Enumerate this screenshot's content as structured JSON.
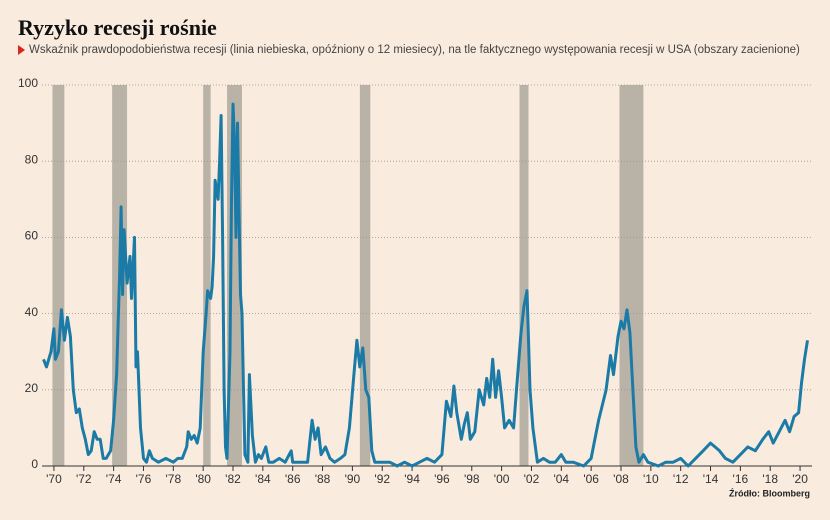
{
  "chart_data": {
    "type": "line",
    "title": "Ryzyko recesji rośnie",
    "subtitle": "Wskaźnik prawdopodobieństwa recesji (linia niebieska, opóźniony o 12 miesiecy), na tle faktycznego występowania recesji w USA (obszary zacienione)",
    "source": "Źródło: Bloomberg",
    "color": "#1c7ba6",
    "recession_color": "#b9b3a7",
    "grid": true,
    "recessions": [
      [
        1969.9,
        1970.7
      ],
      [
        1973.9,
        1974.9
      ],
      [
        1980.0,
        1980.5
      ],
      [
        1981.6,
        1982.6
      ],
      [
        1990.5,
        1991.2
      ],
      [
        2001.2,
        2001.8
      ],
      [
        2007.9,
        2009.5
      ]
    ],
    "x": [
      1969.3,
      1969.5,
      1969.8,
      1970.0,
      1970.1,
      1970.3,
      1970.5,
      1970.7,
      1970.9,
      1971.1,
      1971.3,
      1971.5,
      1971.7,
      1971.9,
      1972.1,
      1972.3,
      1972.5,
      1972.7,
      1972.9,
      1973.1,
      1973.3,
      1973.5,
      1973.8,
      1974.0,
      1974.2,
      1974.4,
      1974.5,
      1974.6,
      1974.7,
      1974.9,
      1975.1,
      1975.2,
      1975.4,
      1975.5,
      1975.6,
      1975.8,
      1976.0,
      1976.2,
      1976.4,
      1976.6,
      1977.0,
      1977.5,
      1978.0,
      1978.3,
      1978.6,
      1978.9,
      1979.0,
      1979.2,
      1979.4,
      1979.6,
      1979.8,
      1980.0,
      1980.2,
      1980.3,
      1980.5,
      1980.6,
      1980.7,
      1980.8,
      1981.0,
      1981.1,
      1981.2,
      1981.3,
      1981.4,
      1981.5,
      1981.6,
      1981.8,
      1981.9,
      1982.0,
      1982.1,
      1982.2,
      1982.3,
      1982.5,
      1982.6,
      1982.7,
      1982.8,
      1983.0,
      1983.1,
      1983.3,
      1983.5,
      1983.7,
      1983.9,
      1984.2,
      1984.4,
      1984.7,
      1985.1,
      1985.5,
      1985.9,
      1986.0,
      1986.4,
      1987.0,
      1987.3,
      1987.5,
      1987.7,
      1987.9,
      1988.2,
      1988.5,
      1988.8,
      1989.2,
      1989.5,
      1989.8,
      1990.1,
      1990.3,
      1990.5,
      1990.7,
      1990.9,
      1991.1,
      1991.3,
      1991.5,
      1992.0,
      1992.5,
      1993.0,
      1993.5,
      1994.0,
      1994.5,
      1995.0,
      1995.5,
      1996.0,
      1996.3,
      1996.6,
      1996.8,
      1997.0,
      1997.3,
      1997.5,
      1997.7,
      1997.9,
      1998.2,
      1998.5,
      1998.8,
      1999.0,
      1999.2,
      1999.4,
      1999.6,
      1999.8,
      2000.0,
      2000.2,
      2000.5,
      2000.8,
      2001.0,
      2001.3,
      2001.5,
      2001.7,
      2001.9,
      2002.1,
      2002.4,
      2002.8,
      2003.2,
      2003.6,
      2004.0,
      2004.3,
      2004.8,
      2005.5,
      2006.0,
      2006.5,
      2007.0,
      2007.3,
      2007.5,
      2007.8,
      2008.0,
      2008.2,
      2008.4,
      2008.6,
      2008.8,
      2009.0,
      2009.2,
      2009.5,
      2009.8,
      2010.5,
      2011.0,
      2011.5,
      2012.0,
      2012.5,
      2013.0,
      2013.5,
      2014.0,
      2014.3,
      2014.6,
      2015.0,
      2015.5,
      2016.0,
      2016.5,
      2017.0,
      2017.5,
      2017.9,
      2018.2,
      2018.6,
      2019.0,
      2019.3,
      2019.6,
      2019.9,
      2020.1,
      2020.3,
      2020.5
    ],
    "values": [
      28,
      26,
      30,
      36,
      28,
      30,
      41,
      33,
      39,
      34,
      20,
      14,
      15,
      10,
      7,
      3,
      4,
      9,
      7,
      7,
      2,
      2,
      4,
      12,
      24,
      50,
      68,
      45,
      62,
      48,
      55,
      44,
      60,
      26,
      30,
      10,
      2,
      1,
      4,
      2,
      1,
      2,
      1,
      2,
      2,
      5,
      9,
      7,
      8,
      6,
      10,
      30,
      40,
      46,
      44,
      47,
      55,
      75,
      70,
      80,
      92,
      60,
      20,
      5,
      2,
      30,
      70,
      95,
      85,
      60,
      90,
      45,
      40,
      20,
      3,
      1,
      24,
      8,
      1,
      3,
      2,
      5,
      1,
      1,
      2,
      1,
      4,
      1,
      1,
      1,
      12,
      7,
      10,
      3,
      5,
      2,
      1,
      2,
      3,
      10,
      24,
      33,
      26,
      31,
      20,
      18,
      4,
      1,
      1,
      1,
      0,
      1,
      0,
      1,
      2,
      1,
      3,
      17,
      13,
      21,
      14,
      7,
      11,
      14,
      7,
      9,
      20,
      16,
      23,
      18,
      28,
      18,
      25,
      18,
      10,
      12,
      10,
      20,
      35,
      42,
      46,
      20,
      10,
      1,
      2,
      1,
      1,
      3,
      1,
      1,
      0,
      2,
      12,
      20,
      29,
      24,
      34,
      38,
      36,
      41,
      35,
      20,
      5,
      1,
      3,
      1,
      0,
      1,
      1,
      2,
      0,
      2,
      4,
      6,
      5,
      4,
      2,
      1,
      3,
      5,
      4,
      7,
      9,
      6,
      9,
      12,
      9,
      13,
      14,
      22,
      28,
      33
    ],
    "xlim": [
      1969.2,
      2020.8
    ],
    "ylim": [
      0,
      100
    ],
    "yticks": [
      0,
      20,
      40,
      60,
      80,
      100
    ],
    "xticks": [
      {
        "value": 1970,
        "label": "'70"
      },
      {
        "value": 1972,
        "label": "'72"
      },
      {
        "value": 1974,
        "label": "'74"
      },
      {
        "value": 1976,
        "label": "'76"
      },
      {
        "value": 1978,
        "label": "'78"
      },
      {
        "value": 1980,
        "label": "'80"
      },
      {
        "value": 1982,
        "label": "'82"
      },
      {
        "value": 1984,
        "label": "'84"
      },
      {
        "value": 1986,
        "label": "'86"
      },
      {
        "value": 1988,
        "label": "'88"
      },
      {
        "value": 1990,
        "label": "'90"
      },
      {
        "value": 1992,
        "label": "'92"
      },
      {
        "value": 1994,
        "label": "'94"
      },
      {
        "value": 1996,
        "label": "'96"
      },
      {
        "value": 1998,
        "label": "'98"
      },
      {
        "value": 2000,
        "label": "'00"
      },
      {
        "value": 2002,
        "label": "'02"
      },
      {
        "value": 2004,
        "label": "'04"
      },
      {
        "value": 2006,
        "label": "'06"
      },
      {
        "value": 2008,
        "label": "'08"
      },
      {
        "value": 2010,
        "label": "'10"
      },
      {
        "value": 2012,
        "label": "'12"
      },
      {
        "value": 2014,
        "label": "'14"
      },
      {
        "value": 2016,
        "label": "'16"
      },
      {
        "value": 2018,
        "label": "'18"
      },
      {
        "value": 2020,
        "label": "'20"
      }
    ]
  }
}
